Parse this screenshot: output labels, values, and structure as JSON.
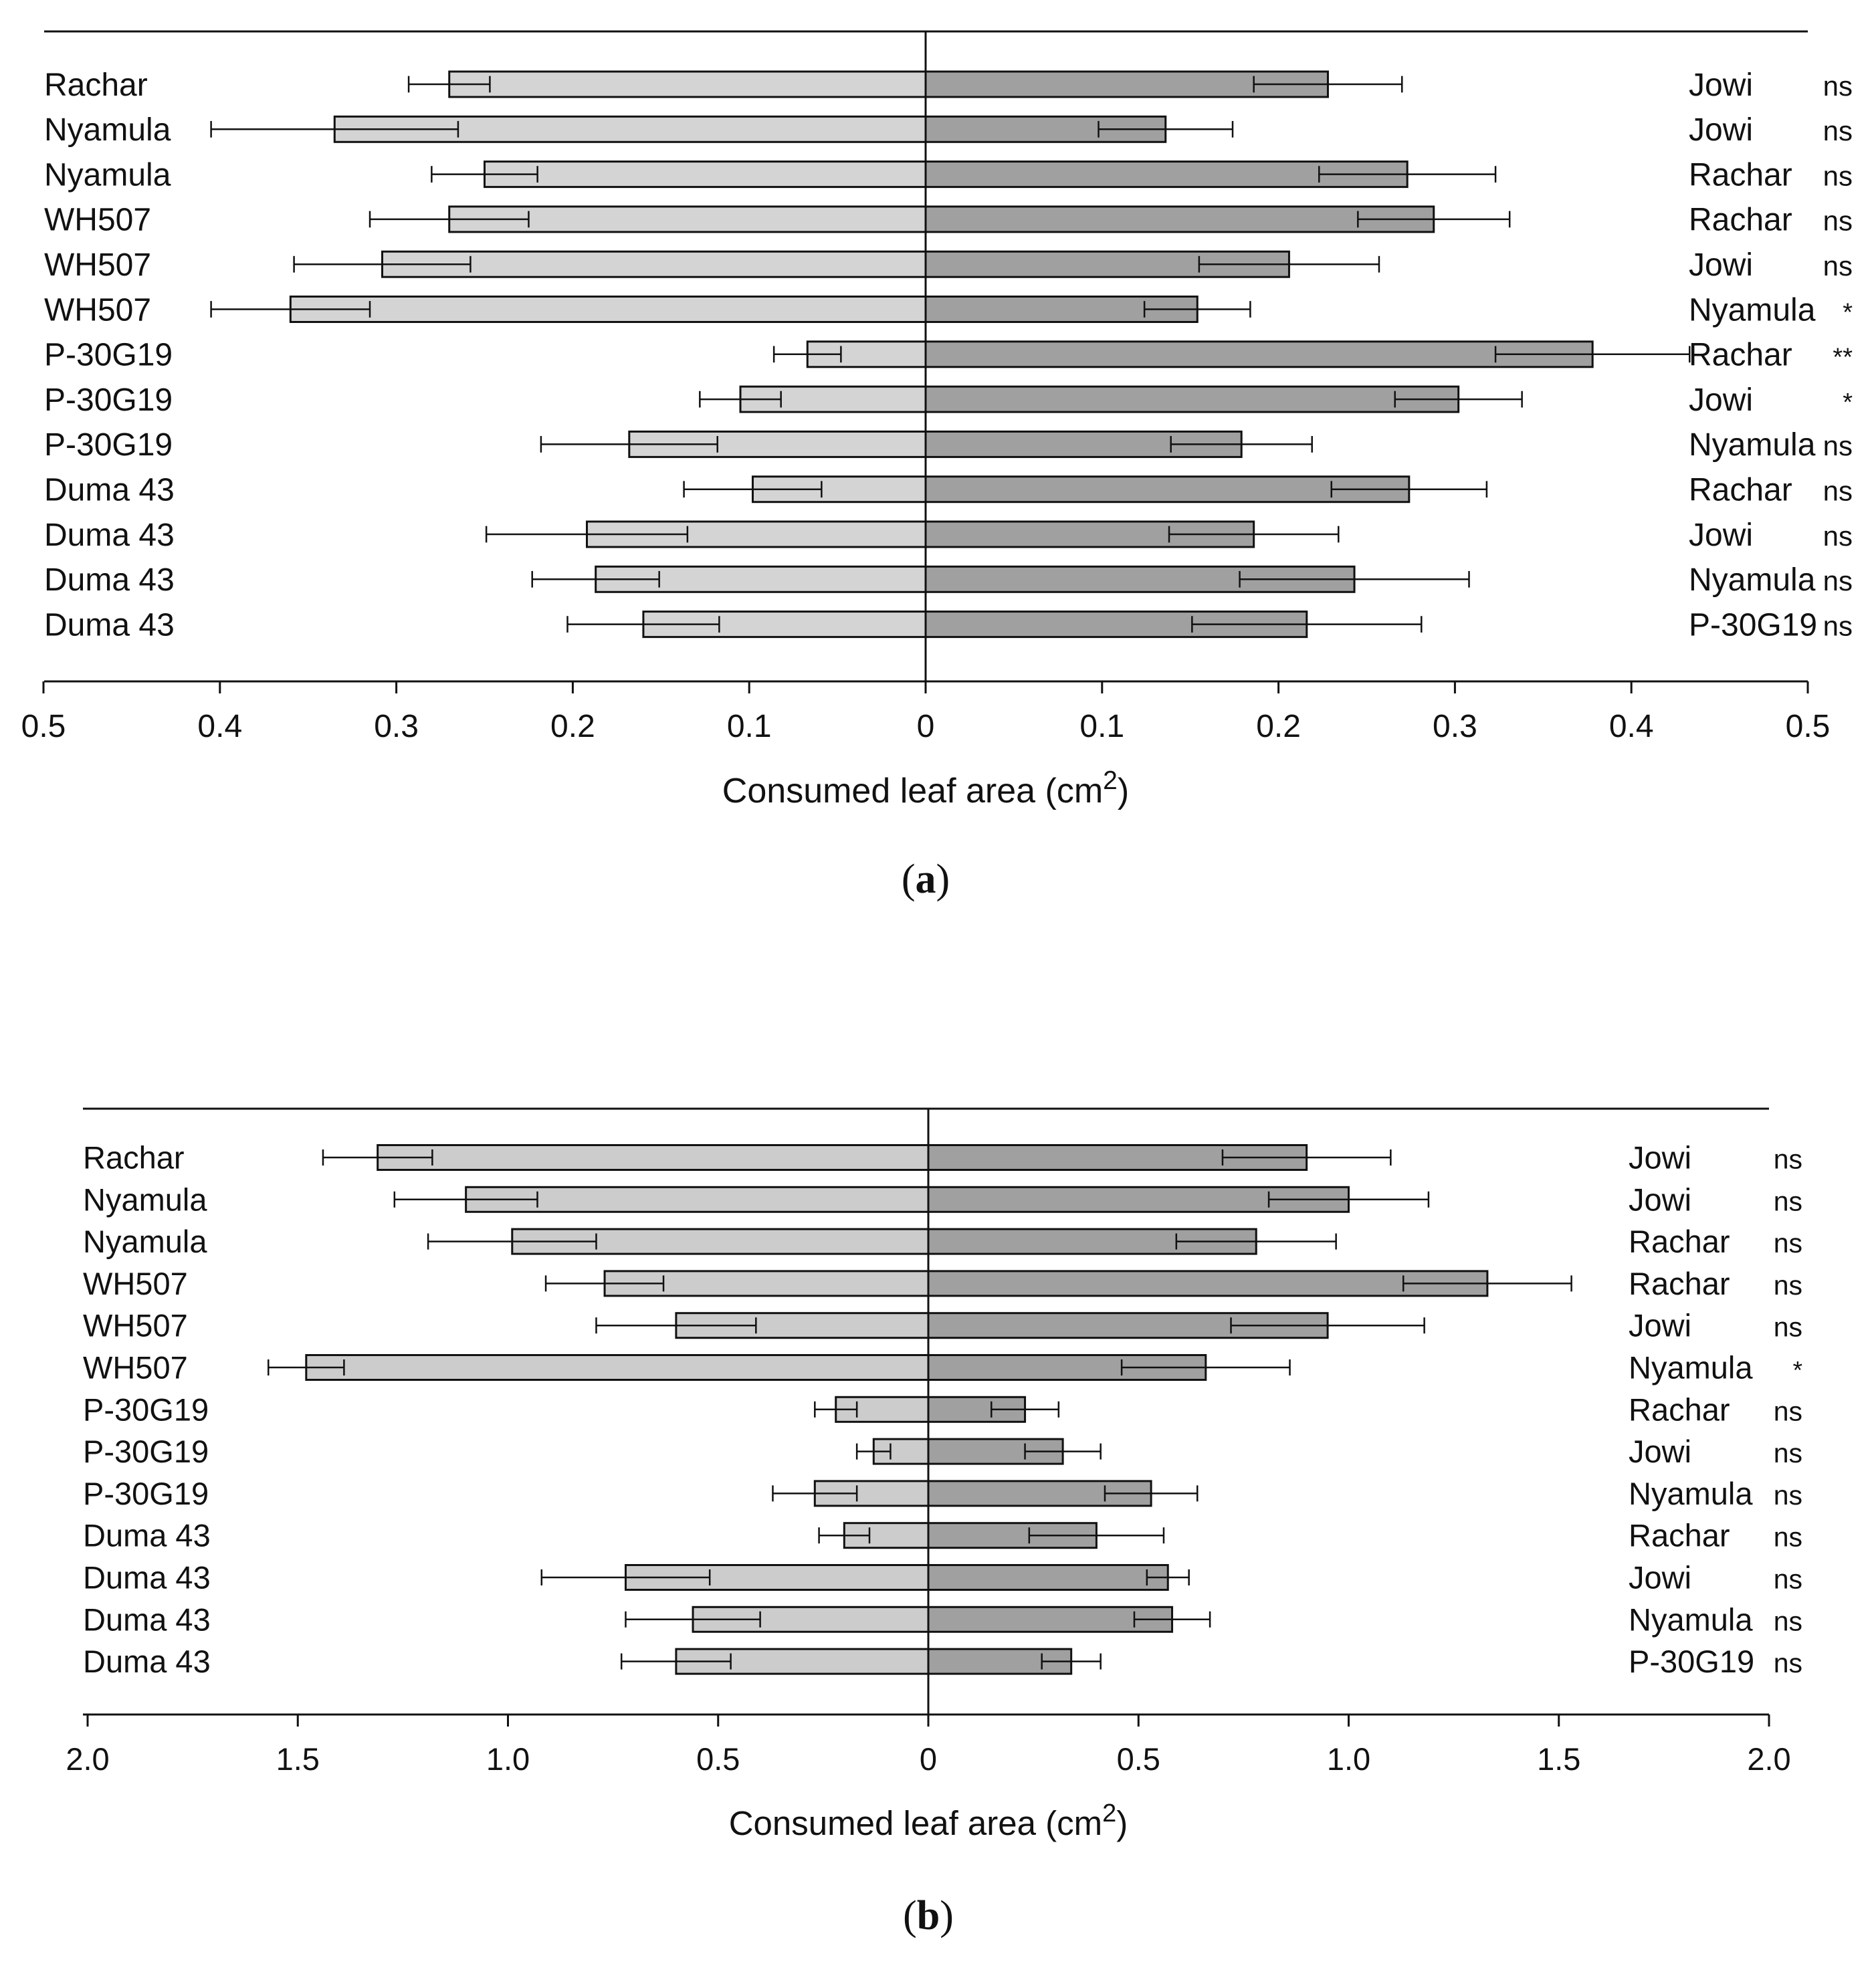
{
  "chart_data": [
    {
      "type": "bar",
      "orientation": "horizontal-bidirectional",
      "panel_label": "(a)",
      "panel_letter": "a",
      "xlabel": "Consumed leaf area (cm",
      "xlabel_sup": "2",
      "xlabel_close": ")",
      "xlim": [
        -0.5,
        0.5
      ],
      "xticks": [
        -0.5,
        -0.4,
        -0.3,
        -0.2,
        -0.1,
        0,
        0.1,
        0.2,
        0.3,
        0.4,
        0.5
      ],
      "xtick_labels": [
        "0.5",
        "0.4",
        "0.3",
        "0.2",
        "0.1",
        "0",
        "0.1",
        "0.2",
        "0.3",
        "0.4",
        "0.5"
      ],
      "colors": {
        "left": "#d4d4d4",
        "right": "#a0a0a0",
        "stroke": "#111111"
      },
      "rows": [
        {
          "left_label": "Rachar",
          "left_value": 0.27,
          "left_err": 0.023,
          "right_label": "Jowi",
          "right_value": 0.228,
          "right_err": 0.042,
          "sig": "ns"
        },
        {
          "left_label": "Nyamula",
          "left_value": 0.335,
          "left_err": 0.07,
          "right_label": "Jowi",
          "right_value": 0.136,
          "right_err": 0.038,
          "sig": "ns"
        },
        {
          "left_label": "Nyamula",
          "left_value": 0.25,
          "left_err": 0.03,
          "right_label": "Rachar",
          "right_value": 0.273,
          "right_err": 0.05,
          "sig": "ns"
        },
        {
          "left_label": "WH507",
          "left_value": 0.27,
          "left_err": 0.045,
          "right_label": "Rachar",
          "right_value": 0.288,
          "right_err": 0.043,
          "sig": "ns"
        },
        {
          "left_label": "WH507",
          "left_value": 0.308,
          "left_err": 0.05,
          "right_label": "Jowi",
          "right_value": 0.206,
          "right_err": 0.051,
          "sig": "ns"
        },
        {
          "left_label": "WH507",
          "left_value": 0.36,
          "left_err": 0.045,
          "right_label": "Nyamula",
          "right_value": 0.154,
          "right_err": 0.03,
          "sig": "*"
        },
        {
          "left_label": "P-30G19",
          "left_value": 0.067,
          "left_err": 0.019,
          "right_label": "Rachar",
          "right_value": 0.378,
          "right_err": 0.055,
          "sig": "**"
        },
        {
          "left_label": "P-30G19",
          "left_value": 0.105,
          "left_err": 0.023,
          "right_label": "Jowi",
          "right_value": 0.302,
          "right_err": 0.036,
          "sig": "*"
        },
        {
          "left_label": "P-30G19",
          "left_value": 0.168,
          "left_err": 0.05,
          "right_label": "Nyamula",
          "right_value": 0.179,
          "right_err": 0.04,
          "sig": "ns"
        },
        {
          "left_label": "Duma 43",
          "left_value": 0.098,
          "left_err": 0.039,
          "right_label": "Rachar",
          "right_value": 0.274,
          "right_err": 0.044,
          "sig": "ns"
        },
        {
          "left_label": "Duma 43",
          "left_value": 0.192,
          "left_err": 0.057,
          "right_label": "Jowi",
          "right_value": 0.186,
          "right_err": 0.048,
          "sig": "ns"
        },
        {
          "left_label": "Duma 43",
          "left_value": 0.187,
          "left_err": 0.036,
          "right_label": "Nyamula",
          "right_value": 0.243,
          "right_err": 0.065,
          "sig": "ns"
        },
        {
          "left_label": "Duma 43",
          "left_value": 0.16,
          "left_err": 0.043,
          "right_label": "P-30G19",
          "right_value": 0.216,
          "right_err": 0.065,
          "sig": "ns"
        }
      ]
    },
    {
      "type": "bar",
      "orientation": "horizontal-bidirectional",
      "panel_label": "(b)",
      "panel_letter": "b",
      "xlabel": "Consumed leaf area (cm",
      "xlabel_sup": "2",
      "xlabel_close": ")",
      "xlim": [
        -2.0,
        2.0
      ],
      "xticks": [
        -2.0,
        -1.5,
        -1.0,
        -0.5,
        0,
        0.5,
        1.0,
        1.5,
        2.0
      ],
      "xtick_labels": [
        "2.0",
        "1.5",
        "1.0",
        "0.5",
        "0",
        "0.5",
        "1.0",
        "1.5",
        "2.0"
      ],
      "colors": {
        "left": "#cccccc",
        "right": "#a0a0a0",
        "stroke": "#111111"
      },
      "rows": [
        {
          "left_label": "Rachar",
          "left_value": 1.31,
          "left_err": 0.13,
          "right_label": "Jowi",
          "right_value": 0.9,
          "right_err": 0.2,
          "sig": "ns"
        },
        {
          "left_label": "Nyamula",
          "left_value": 1.1,
          "left_err": 0.17,
          "right_label": "Jowi",
          "right_value": 1.0,
          "right_err": 0.19,
          "sig": "ns"
        },
        {
          "left_label": "Nyamula",
          "left_value": 0.99,
          "left_err": 0.2,
          "right_label": "Rachar",
          "right_value": 0.78,
          "right_err": 0.19,
          "sig": "ns"
        },
        {
          "left_label": "WH507",
          "left_value": 0.77,
          "left_err": 0.14,
          "right_label": "Rachar",
          "right_value": 1.33,
          "right_err": 0.2,
          "sig": "ns"
        },
        {
          "left_label": "WH507",
          "left_value": 0.6,
          "left_err": 0.19,
          "right_label": "Jowi",
          "right_value": 0.95,
          "right_err": 0.23,
          "sig": "ns"
        },
        {
          "left_label": "WH507",
          "left_value": 1.48,
          "left_err": 0.09,
          "right_label": "Nyamula",
          "right_value": 0.66,
          "right_err": 0.2,
          "sig": "*"
        },
        {
          "left_label": "P-30G19",
          "left_value": 0.22,
          "left_err": 0.05,
          "right_label": "Rachar",
          "right_value": 0.23,
          "right_err": 0.08,
          "sig": "ns"
        },
        {
          "left_label": "P-30G19",
          "left_value": 0.13,
          "left_err": 0.04,
          "right_label": "Jowi",
          "right_value": 0.32,
          "right_err": 0.09,
          "sig": "ns"
        },
        {
          "left_label": "P-30G19",
          "left_value": 0.27,
          "left_err": 0.1,
          "right_label": "Nyamula",
          "right_value": 0.53,
          "right_err": 0.11,
          "sig": "ns"
        },
        {
          "left_label": "Duma 43",
          "left_value": 0.2,
          "left_err": 0.06,
          "right_label": "Rachar",
          "right_value": 0.4,
          "right_err": 0.16,
          "sig": "ns"
        },
        {
          "left_label": "Duma 43",
          "left_value": 0.72,
          "left_err": 0.2,
          "right_label": "Jowi",
          "right_value": 0.57,
          "right_err": 0.05,
          "sig": "ns"
        },
        {
          "left_label": "Duma 43",
          "left_value": 0.56,
          "left_err": 0.16,
          "right_label": "Nyamula",
          "right_value": 0.58,
          "right_err": 0.09,
          "sig": "ns"
        },
        {
          "left_label": "Duma 43",
          "left_value": 0.6,
          "left_err": 0.13,
          "right_label": "P-30G19",
          "right_value": 0.34,
          "right_err": 0.07,
          "sig": "ns"
        }
      ]
    }
  ]
}
